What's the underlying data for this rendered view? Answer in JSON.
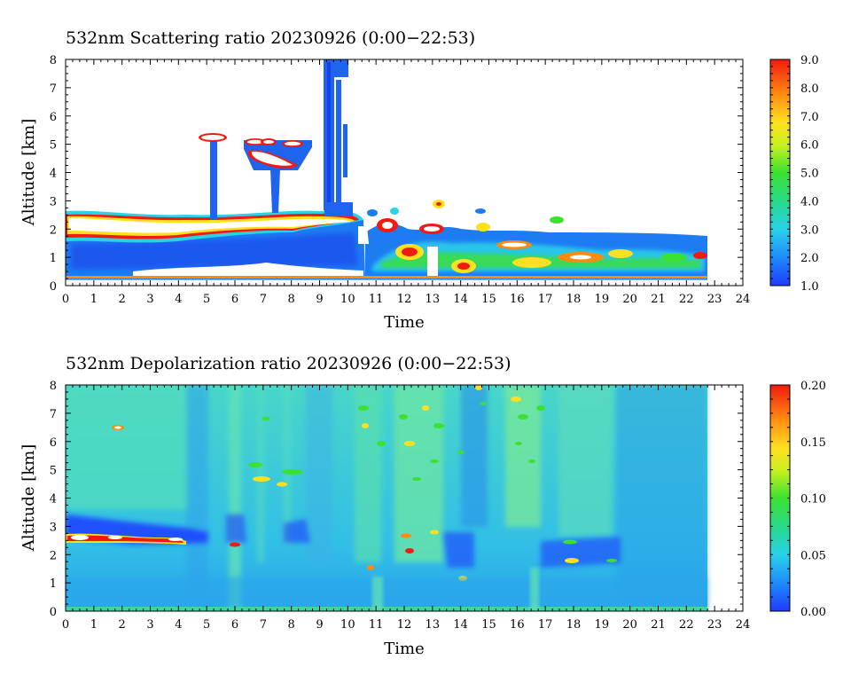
{
  "chart_data": [
    {
      "type": "heatmap",
      "title": "532nm Scattering ratio  20230926 (0:00−22:53)",
      "xlabel": "Time",
      "ylabel": "Altitude [km]",
      "xlim": [
        0,
        24
      ],
      "ylim": [
        0,
        8
      ],
      "x_ticks": [
        "0",
        "1",
        "2",
        "3",
        "4",
        "5",
        "6",
        "7",
        "8",
        "9",
        "10",
        "11",
        "12",
        "13",
        "14",
        "15",
        "16",
        "17",
        "18",
        "19",
        "20",
        "21",
        "22",
        "23",
        "24"
      ],
      "y_ticks": [
        "0",
        "1",
        "2",
        "3",
        "4",
        "5",
        "6",
        "7",
        "8"
      ],
      "data_end_hour": 22.88,
      "colorbar": {
        "min": 1.0,
        "max": 9.0,
        "ticks": [
          "1.0",
          "2.0",
          "3.0",
          "4.0",
          "5.0",
          "6.0",
          "7.0",
          "8.0",
          "9.0"
        ]
      },
      "features": [
        {
          "kind": "low cloud deck",
          "time": [
            0,
            10.5
          ],
          "altitude_km": [
            1.5,
            2.5
          ],
          "value": 9.0
        },
        {
          "kind": "boundary layer",
          "time": [
            0,
            10.5
          ],
          "altitude_km": [
            0.3,
            2.0
          ],
          "value": 2.0
        },
        {
          "kind": "mid cloud",
          "time": [
            5.0,
            5.5
          ],
          "altitude_km": [
            5.0,
            5.4
          ],
          "value": 9.0
        },
        {
          "kind": "mid cloud",
          "time": [
            6.5,
            8.6
          ],
          "altitude_km": [
            4.2,
            5.2
          ],
          "value": 9.0
        },
        {
          "kind": "cloud column",
          "time": [
            9.1,
            10.0
          ],
          "altitude_km": [
            2.8,
            8.0
          ],
          "value": 2.0
        },
        {
          "kind": "broken clouds",
          "time": [
            10.5,
            22.7
          ],
          "altitude_km": [
            0.3,
            3.0
          ],
          "value": 5.0
        }
      ]
    },
    {
      "type": "heatmap",
      "title": "532nm Depolarization ratio  20230926 (0:00−22:53)",
      "xlabel": "Time",
      "ylabel": "Altitude [km]",
      "xlim": [
        0,
        24
      ],
      "ylim": [
        0,
        8
      ],
      "x_ticks": [
        "0",
        "1",
        "2",
        "3",
        "4",
        "5",
        "6",
        "7",
        "8",
        "9",
        "10",
        "11",
        "12",
        "13",
        "14",
        "15",
        "16",
        "17",
        "18",
        "19",
        "20",
        "21",
        "22",
        "23",
        "24"
      ],
      "y_ticks": [
        "0",
        "1",
        "2",
        "3",
        "4",
        "5",
        "6",
        "7",
        "8"
      ],
      "data_end_hour": 22.88,
      "colorbar": {
        "min": 0.0,
        "max": 0.2,
        "ticks": [
          "0.00",
          "0.05",
          "0.10",
          "0.15",
          "0.20"
        ]
      },
      "features": [
        {
          "kind": "background",
          "time": [
            0,
            22.88
          ],
          "altitude_km": [
            0,
            8
          ],
          "value": 0.05
        },
        {
          "kind": "cloud base (low depol)",
          "time": [
            0,
            4.5
          ],
          "altitude_km": [
            2.3,
            3.2
          ],
          "value": 0.0
        },
        {
          "kind": "high depol layer",
          "time": [
            0,
            4.5
          ],
          "altitude_km": [
            2.4,
            2.8
          ],
          "value": 0.2
        },
        {
          "kind": "aerosol streaks",
          "time": [
            10.5,
            17.0
          ],
          "altitude_km": [
            3.0,
            8.0
          ],
          "value": 0.09
        }
      ]
    }
  ]
}
